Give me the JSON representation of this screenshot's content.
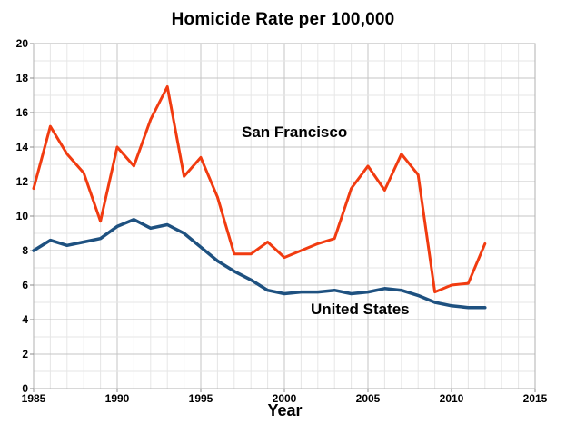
{
  "chart_data": {
    "type": "line",
    "title": "Homicide Rate per 100,000",
    "xlabel": "Year",
    "ylabel": "",
    "x": [
      1985,
      1986,
      1987,
      1988,
      1989,
      1990,
      1991,
      1992,
      1993,
      1994,
      1995,
      1996,
      1997,
      1998,
      1999,
      2000,
      2001,
      2002,
      2003,
      2004,
      2005,
      2006,
      2007,
      2008,
      2009,
      2010,
      2011,
      2012
    ],
    "series": [
      {
        "name": "San Francisco",
        "color": "#f13b10",
        "stroke_width": 3,
        "values": [
          11.6,
          15.2,
          13.6,
          12.5,
          9.7,
          14.0,
          12.9,
          15.6,
          17.5,
          12.3,
          13.4,
          11.1,
          7.8,
          7.8,
          8.5,
          7.6,
          8.0,
          8.4,
          8.7,
          11.6,
          12.9,
          11.5,
          13.6,
          12.4,
          5.6,
          6.0,
          6.1,
          8.4
        ]
      },
      {
        "name": "United States",
        "color": "#1e5180",
        "stroke_width": 3.5,
        "values": [
          8.0,
          8.6,
          8.3,
          8.5,
          8.7,
          9.4,
          9.8,
          9.3,
          9.5,
          9.0,
          8.2,
          7.4,
          6.8,
          6.3,
          5.7,
          5.5,
          5.6,
          5.6,
          5.7,
          5.5,
          5.6,
          5.8,
          5.7,
          5.4,
          5.0,
          4.8,
          4.7,
          4.7
        ]
      }
    ],
    "xlim": [
      1985,
      2015
    ],
    "ylim": [
      0,
      20
    ],
    "x_ticks": [
      1985,
      1990,
      1995,
      2000,
      2005,
      2010,
      2015
    ],
    "y_ticks": [
      0,
      2,
      4,
      6,
      8,
      10,
      12,
      14,
      16,
      18,
      20
    ],
    "grid": "minor vertical every 1 year, major every 5 years; minor horizontal every 1 unit, major every 2 units",
    "legend": "none (series labeled by inline text annotations)",
    "colors": {
      "grid_minor": "#e6e6e6",
      "grid_major": "#c4c4c4",
      "plot_border": "#b0b0b0",
      "text": "#000000"
    }
  }
}
